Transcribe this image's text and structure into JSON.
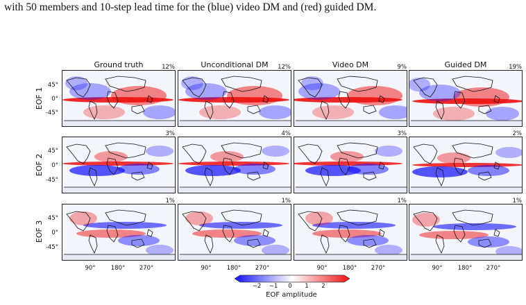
{
  "caption": "with 50 members and 10-step lead time for the (blue) video DM and (red) guided DM.",
  "figure": {
    "columns": [
      "Ground truth",
      "Unconditional DM",
      "Video DM",
      "Guided DM"
    ],
    "rows": [
      "EOF 1",
      "EOF 2",
      "EOF 3"
    ],
    "percentages": [
      [
        "12%",
        "12%",
        "9%",
        "19%"
      ],
      [
        "3%",
        "4%",
        "3%",
        "2%"
      ],
      [
        "1%",
        "1%",
        "1%",
        "1%"
      ]
    ],
    "lat_ticks": [
      "45°",
      "0°",
      "-45°"
    ],
    "lon_ticks": [
      "90°",
      "180°",
      "270°"
    ],
    "colorbar": {
      "ticks": [
        "−2",
        "−1",
        "0",
        "1",
        "2"
      ],
      "label": "EOF amplitude",
      "colors": {
        "negative": "#1010ff",
        "zero": "#ffffff",
        "positive": "#ee1010"
      }
    }
  }
}
